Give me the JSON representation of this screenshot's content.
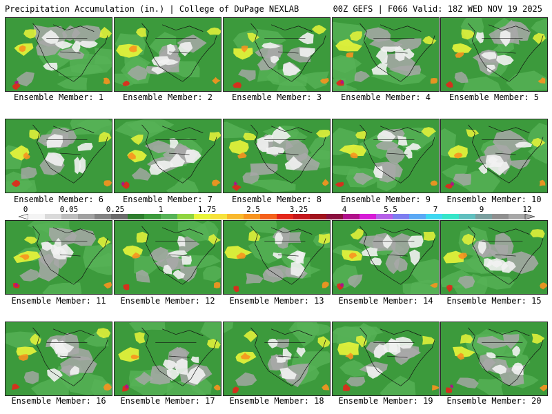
{
  "header": {
    "left": "Precipitation Accumulation (in.) | College of DuPage NEXLAB",
    "right": "00Z GEFS | F066 Valid: 18Z WED NOV 19 2025"
  },
  "caption_prefix": "Ensemble Member:",
  "members": [
    {
      "label": "Ensemble Member: 1"
    },
    {
      "label": "Ensemble Member: 2"
    },
    {
      "label": "Ensemble Member: 3"
    },
    {
      "label": "Ensemble Member: 4"
    },
    {
      "label": "Ensemble Member: 5"
    },
    {
      "label": "Ensemble Member: 6"
    },
    {
      "label": "Ensemble Member: 7"
    },
    {
      "label": "Ensemble Member: 8"
    },
    {
      "label": "Ensemble Member: 9"
    },
    {
      "label": "Ensemble Member: 10"
    },
    {
      "label": "Ensemble Member: 11"
    },
    {
      "label": "Ensemble Member: 12"
    },
    {
      "label": "Ensemble Member: 13"
    },
    {
      "label": "Ensemble Member: 14"
    },
    {
      "label": "Ensemble Member: 15"
    },
    {
      "label": "Ensemble Member: 16"
    },
    {
      "label": "Ensemble Member: 17"
    },
    {
      "label": "Ensemble Member: 18"
    },
    {
      "label": "Ensemble Member: 19"
    },
    {
      "label": "Ensemble Member: 20"
    }
  ],
  "colorbar": {
    "ticks": [
      "0",
      "0.05",
      "0.25",
      "1",
      "1.75",
      "2.5",
      "3.25",
      "4",
      "5.5",
      "7",
      "9",
      "12"
    ],
    "colors": [
      "#f4f4f4",
      "#dadada",
      "#bdbdbd",
      "#a0a0a0",
      "#838383",
      "#6a6a6a",
      "#2e7d2e",
      "#3c9a3c",
      "#56b256",
      "#8fd43f",
      "#e9f53a",
      "#f7e23b",
      "#f9b82c",
      "#f8941f",
      "#f4611b",
      "#e3261a",
      "#c4171b",
      "#a0121c",
      "#8a0f3e",
      "#b0108a",
      "#d61bd6",
      "#b560e8",
      "#7d7df0",
      "#5aa8f5",
      "#3ed7f0",
      "#35e5c9",
      "#5fbfbf",
      "#7a9f9f",
      "#8f8f8f",
      "#a7a7a7"
    ]
  },
  "map_colors": {
    "background": "#3c9a3c",
    "light_green": "#56b256",
    "gray": "#a8a8a8",
    "white": "#f2f2f2",
    "yellow": "#e9f53a",
    "orange": "#f8941f",
    "red": "#e3261a",
    "magenta": "#b0108a",
    "coast": "#111111"
  }
}
